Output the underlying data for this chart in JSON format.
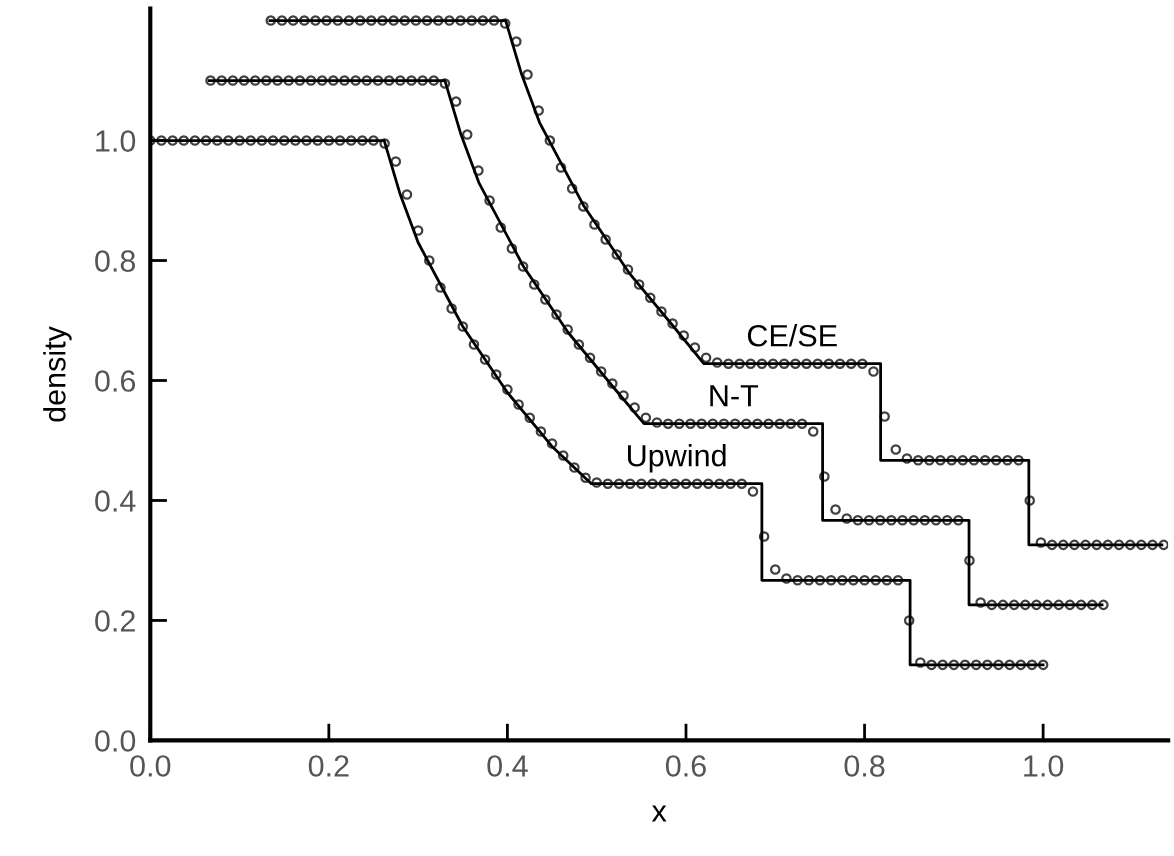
{
  "chart_data": {
    "type": "line",
    "xlabel": "x",
    "ylabel": "density",
    "xlim": [
      0,
      1.14
    ],
    "ylim": [
      0,
      1.22
    ],
    "xticks": [
      {
        "value": 0,
        "label": "0.0"
      },
      {
        "value": 0.2,
        "label": "0.2"
      },
      {
        "value": 0.4,
        "label": "0.4"
      },
      {
        "value": 0.6,
        "label": "0.6"
      },
      {
        "value": 0.8,
        "label": "0.8"
      },
      {
        "value": 1.0,
        "label": "1.0"
      }
    ],
    "yticks": [
      {
        "value": 0,
        "label": "0.0"
      },
      {
        "value": 0.2,
        "label": "0.2"
      },
      {
        "value": 0.4,
        "label": "0.4"
      },
      {
        "value": 0.6,
        "label": "0.6"
      },
      {
        "value": 0.8,
        "label": "0.8"
      },
      {
        "value": 1.0,
        "label": "1.0"
      }
    ],
    "series": [
      {
        "name": "Upwind",
        "color": "#000000",
        "line_style": "solid",
        "x": [
          0,
          0.262,
          0.28,
          0.3,
          0.35,
          0.4,
          0.45,
          0.494,
          0.685,
          0.685,
          0.851,
          0.851,
          1.0
        ],
        "values": [
          1.0,
          1.0,
          0.91,
          0.83,
          0.69,
          0.58,
          0.49,
          0.428,
          0.428,
          0.267,
          0.267,
          0.126,
          0.126
        ]
      },
      {
        "name": "N-T",
        "color": "#000000",
        "line_style": "solid",
        "x": [
          0.066,
          0.33,
          0.348,
          0.368,
          0.418,
          0.468,
          0.518,
          0.553,
          0.753,
          0.753,
          0.917,
          0.917,
          1.066
        ],
        "values": [
          1.1,
          1.1,
          1.01,
          0.93,
          0.79,
          0.68,
          0.59,
          0.528,
          0.528,
          0.367,
          0.367,
          0.226,
          0.226
        ]
      },
      {
        "name": "CE/SE",
        "color": "#000000",
        "line_style": "solid",
        "x": [
          0.134,
          0.398,
          0.416,
          0.436,
          0.486,
          0.536,
          0.586,
          0.62,
          0.818,
          0.818,
          0.984,
          0.984,
          1.133
        ],
        "values": [
          1.2,
          1.2,
          1.11,
          1.03,
          0.89,
          0.78,
          0.69,
          0.628,
          0.628,
          0.467,
          0.467,
          0.326,
          0.326
        ]
      },
      {
        "type": "scatter",
        "color": "#404040",
        "marker": "circle",
        "x": [
          0,
          0.0125,
          0.025,
          0.0375,
          0.05,
          0.0625,
          0.075,
          0.0875,
          0.1,
          0.1125,
          0.125,
          0.1375,
          0.15,
          0.1625,
          0.175,
          0.1875,
          0.2,
          0.2125,
          0.225,
          0.2375,
          0.25,
          0.2625,
          0.275,
          0.2875,
          0.3,
          0.3125,
          0.325,
          0.3375,
          0.35,
          0.3625,
          0.375,
          0.3875,
          0.4,
          0.4125,
          0.425,
          0.4375,
          0.45,
          0.4625,
          0.475,
          0.4875,
          0.5,
          0.5125,
          0.525,
          0.5375,
          0.55,
          0.5625,
          0.575,
          0.5875,
          0.6,
          0.6125,
          0.625,
          0.6375,
          0.65,
          0.6625,
          0.675,
          0.6875,
          0.7,
          0.7125,
          0.725,
          0.7375,
          0.75,
          0.7625,
          0.775,
          0.7875,
          0.8,
          0.8125,
          0.825,
          0.8375,
          0.85,
          0.8625,
          0.875,
          0.8875,
          0.9,
          0.9125,
          0.925,
          0.9375,
          0.95,
          0.9625,
          0.975,
          0.9875,
          1.0
        ],
        "values": [
          1.0,
          1.0,
          1.0,
          1.0,
          1.0,
          1.0,
          1.0,
          1.0,
          1.0,
          1.0,
          1.0,
          1.0,
          1.0,
          1.0,
          1.0,
          1.0,
          1.0,
          1.0,
          1.0,
          1.0,
          1.0,
          0.995,
          0.965,
          0.91,
          0.85,
          0.8,
          0.755,
          0.72,
          0.69,
          0.66,
          0.635,
          0.61,
          0.585,
          0.56,
          0.538,
          0.515,
          0.495,
          0.475,
          0.455,
          0.438,
          0.43,
          0.428,
          0.428,
          0.428,
          0.428,
          0.428,
          0.428,
          0.428,
          0.428,
          0.428,
          0.428,
          0.428,
          0.428,
          0.428,
          0.415,
          0.34,
          0.285,
          0.27,
          0.267,
          0.267,
          0.267,
          0.267,
          0.267,
          0.267,
          0.267,
          0.267,
          0.267,
          0.267,
          0.2,
          0.13,
          0.126,
          0.126,
          0.126,
          0.126,
          0.126,
          0.126,
          0.126,
          0.126,
          0.126,
          0.126,
          0.126
        ]
      },
      {
        "type": "scatter",
        "color": "#404040",
        "marker": "circle",
        "x": [
          0.0675,
          0.08,
          0.0925,
          0.105,
          0.1175,
          0.13,
          0.1425,
          0.155,
          0.1675,
          0.18,
          0.1925,
          0.205,
          0.2175,
          0.23,
          0.2425,
          0.255,
          0.2675,
          0.28,
          0.2925,
          0.305,
          0.3175,
          0.33,
          0.3425,
          0.355,
          0.3675,
          0.38,
          0.3925,
          0.405,
          0.4175,
          0.43,
          0.4425,
          0.455,
          0.4675,
          0.48,
          0.4925,
          0.505,
          0.5175,
          0.53,
          0.5425,
          0.555,
          0.5675,
          0.58,
          0.5925,
          0.605,
          0.6175,
          0.63,
          0.6425,
          0.655,
          0.6675,
          0.68,
          0.6925,
          0.705,
          0.7175,
          0.73,
          0.7425,
          0.755,
          0.7675,
          0.78,
          0.7925,
          0.805,
          0.8175,
          0.83,
          0.8425,
          0.855,
          0.8675,
          0.88,
          0.8925,
          0.905,
          0.9175,
          0.93,
          0.9425,
          0.955,
          0.9675,
          0.98,
          0.9925,
          1.005,
          1.0175,
          1.03,
          1.0425,
          1.055,
          1.0675
        ],
        "values": [
          1.1,
          1.1,
          1.1,
          1.1,
          1.1,
          1.1,
          1.1,
          1.1,
          1.1,
          1.1,
          1.1,
          1.1,
          1.1,
          1.1,
          1.1,
          1.1,
          1.1,
          1.1,
          1.1,
          1.1,
          1.1,
          1.095,
          1.065,
          1.01,
          0.95,
          0.9,
          0.855,
          0.82,
          0.79,
          0.76,
          0.735,
          0.71,
          0.685,
          0.66,
          0.638,
          0.615,
          0.595,
          0.575,
          0.555,
          0.538,
          0.53,
          0.528,
          0.528,
          0.528,
          0.528,
          0.528,
          0.528,
          0.528,
          0.528,
          0.528,
          0.528,
          0.528,
          0.528,
          0.528,
          0.515,
          0.44,
          0.385,
          0.37,
          0.367,
          0.367,
          0.367,
          0.367,
          0.367,
          0.367,
          0.367,
          0.367,
          0.367,
          0.367,
          0.3,
          0.23,
          0.226,
          0.226,
          0.226,
          0.226,
          0.226,
          0.226,
          0.226,
          0.226,
          0.226,
          0.226,
          0.226
        ]
      },
      {
        "type": "scatter",
        "color": "#404040",
        "marker": "circle",
        "x": [
          0.135,
          0.1475,
          0.16,
          0.1725,
          0.185,
          0.1975,
          0.21,
          0.2225,
          0.235,
          0.2475,
          0.26,
          0.2725,
          0.285,
          0.2975,
          0.31,
          0.3225,
          0.335,
          0.3475,
          0.36,
          0.3725,
          0.385,
          0.3975,
          0.41,
          0.4225,
          0.435,
          0.4475,
          0.46,
          0.4725,
          0.485,
          0.4975,
          0.51,
          0.5225,
          0.535,
          0.5475,
          0.56,
          0.5725,
          0.585,
          0.5975,
          0.61,
          0.6225,
          0.635,
          0.6475,
          0.66,
          0.6725,
          0.685,
          0.6975,
          0.71,
          0.7225,
          0.735,
          0.7475,
          0.76,
          0.7725,
          0.785,
          0.7975,
          0.81,
          0.8225,
          0.835,
          0.8475,
          0.86,
          0.8725,
          0.885,
          0.8975,
          0.91,
          0.9225,
          0.935,
          0.9475,
          0.96,
          0.9725,
          0.985,
          0.9975,
          1.01,
          1.0225,
          1.035,
          1.0475,
          1.06,
          1.0725,
          1.085,
          1.0975,
          1.11,
          1.1225,
          1.135
        ],
        "values": [
          1.2,
          1.2,
          1.2,
          1.2,
          1.2,
          1.2,
          1.2,
          1.2,
          1.2,
          1.2,
          1.2,
          1.2,
          1.2,
          1.2,
          1.2,
          1.2,
          1.2,
          1.2,
          1.2,
          1.2,
          1.2,
          1.195,
          1.165,
          1.11,
          1.05,
          1.0,
          0.955,
          0.92,
          0.89,
          0.86,
          0.835,
          0.81,
          0.785,
          0.76,
          0.738,
          0.715,
          0.695,
          0.675,
          0.655,
          0.638,
          0.63,
          0.628,
          0.628,
          0.628,
          0.628,
          0.628,
          0.628,
          0.628,
          0.628,
          0.628,
          0.628,
          0.628,
          0.628,
          0.628,
          0.615,
          0.54,
          0.485,
          0.47,
          0.467,
          0.467,
          0.467,
          0.467,
          0.467,
          0.467,
          0.467,
          0.467,
          0.467,
          0.467,
          0.4,
          0.33,
          0.326,
          0.326,
          0.326,
          0.326,
          0.326,
          0.326,
          0.326,
          0.326,
          0.326,
          0.326,
          0.326
        ]
      }
    ]
  }
}
